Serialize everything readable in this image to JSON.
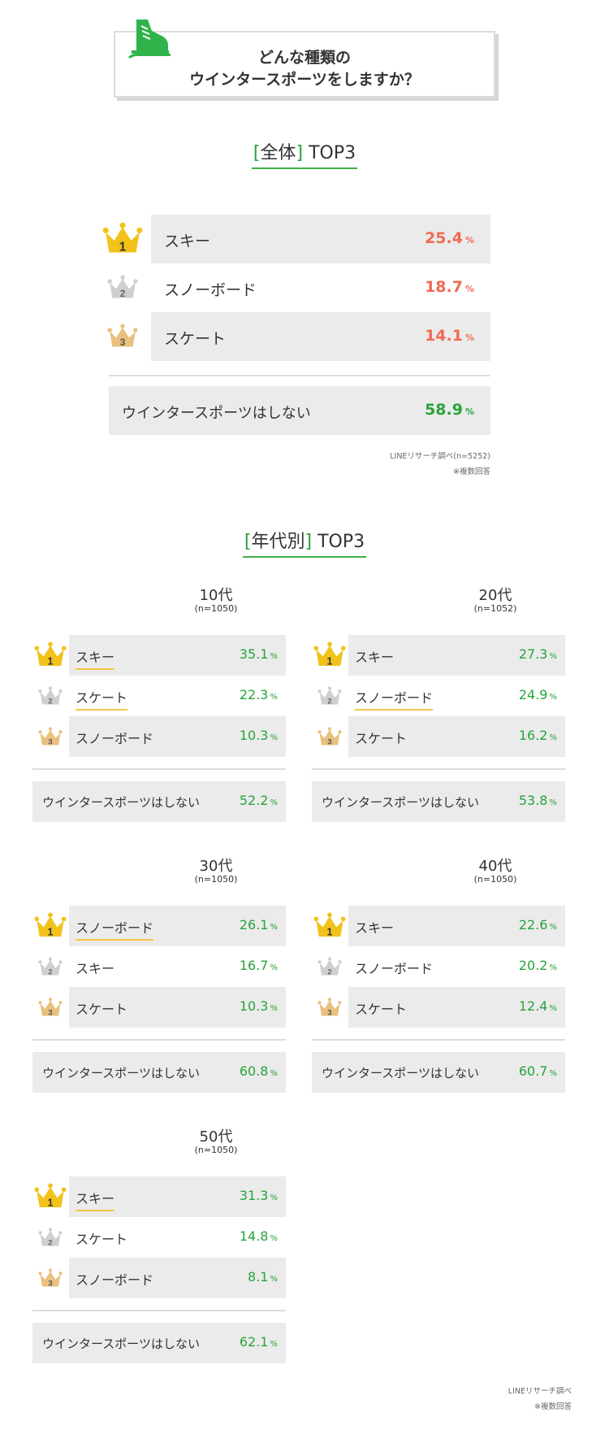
{
  "header": {
    "title_line1": "どんな種類の",
    "title_line2": "ウインタースポーツをしますか？"
  },
  "overall": {
    "heading_open": "[",
    "heading_text": "全体",
    "heading_close": "]",
    "heading_suffix": " TOP3",
    "none": {
      "label": "ウインタースポーツはしない",
      "value": "58.9",
      "unit": "%"
    },
    "source": "LINEリサーチ調べ(n=5252)",
    "note": "※複数回答"
  },
  "by_age": {
    "heading_open": "[",
    "heading_text": "年代別",
    "heading_close": "]",
    "heading_suffix": " TOP3",
    "source": "LINEリサーチ調べ",
    "note": "※複数回答"
  },
  "colors": {
    "accent_green": "#27a33a",
    "accent_red": "#f06a53",
    "gold": "#f2c21a",
    "silver": "#cfcfcf",
    "bronze": "#e9c07d"
  },
  "chart_data": [
    {
      "type": "table",
      "title": "[全体] TOP3",
      "categories": [
        "スキー",
        "スノーボード",
        "スケート",
        "ウインタースポーツはしない"
      ],
      "values": [
        25.4,
        18.7,
        14.1,
        58.9
      ],
      "ranks": [
        "1",
        "2",
        "3"
      ],
      "unit": "%"
    },
    {
      "type": "table",
      "title": "[年代別] TOP3",
      "unit": "%",
      "groups": [
        {
          "age": "10代",
          "n": "(n=1050)",
          "items": [
            {
              "rank": "1",
              "label": "スキー",
              "value": 35.1
            },
            {
              "rank": "2",
              "label": "スケート",
              "value": 22.3
            },
            {
              "rank": "3",
              "label": "スノーボード",
              "value": 10.3
            }
          ],
          "none": {
            "label": "ウインタースポーツはしない",
            "value": 52.2
          }
        },
        {
          "age": "20代",
          "n": "(n=1052)",
          "items": [
            {
              "rank": "1",
              "label": "スキー",
              "value": 27.3
            },
            {
              "rank": "2",
              "label": "スノーボード",
              "value": 24.9
            },
            {
              "rank": "3",
              "label": "スケート",
              "value": 16.2
            }
          ],
          "none": {
            "label": "ウインタースポーツはしない",
            "value": 53.8
          }
        },
        {
          "age": "30代",
          "n": "(n=1050)",
          "items": [
            {
              "rank": "1",
              "label": "スノーボード",
              "value": 26.1
            },
            {
              "rank": "2",
              "label": "スキー",
              "value": 16.7
            },
            {
              "rank": "3",
              "label": "スケート",
              "value": 10.3
            }
          ],
          "none": {
            "label": "ウインタースポーツはしない",
            "value": 60.8
          }
        },
        {
          "age": "40代",
          "n": "(n=1050)",
          "items": [
            {
              "rank": "1",
              "label": "スキー",
              "value": 22.6
            },
            {
              "rank": "2",
              "label": "スノーボード",
              "value": 20.2
            },
            {
              "rank": "3",
              "label": "スケート",
              "value": 12.4
            }
          ],
          "none": {
            "label": "ウインタースポーツはしない",
            "value": 60.7
          }
        },
        {
          "age": "50代",
          "n": "(n=1050)",
          "items": [
            {
              "rank": "1",
              "label": "スキー",
              "value": 31.3
            },
            {
              "rank": "2",
              "label": "スケート",
              "value": 14.8
            },
            {
              "rank": "3",
              "label": "スノーボード",
              "value": 8.1
            }
          ],
          "none": {
            "label": "ウインタースポーツはしない",
            "value": 62.1
          }
        }
      ]
    }
  ]
}
